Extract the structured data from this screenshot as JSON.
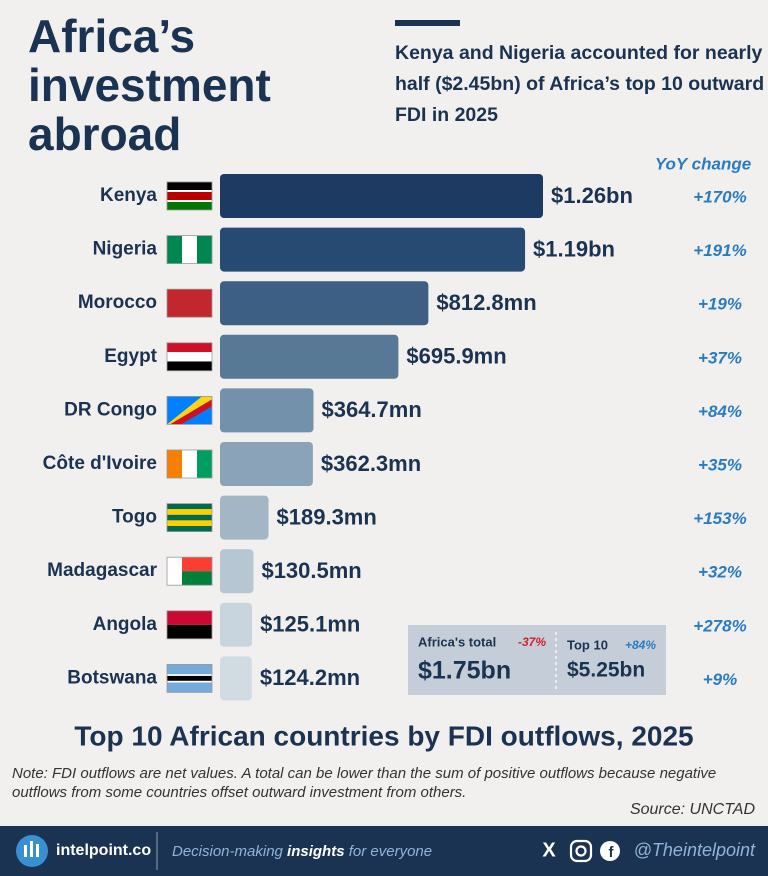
{
  "chart_data": {
    "type": "hbar",
    "title": "Africa’s investment abroad",
    "subtitle": "Kenya and Nigeria accounted for nearly half ($2.45bn) of Africa’s top 10 outward FDI in 2025",
    "chart_title": "Top 10 African countries by FDI outflows, 2025",
    "categories": [
      "Kenya",
      "Nigeria",
      "Morocco",
      "Egypt",
      "DR Congo",
      "Côte d'Ivoire",
      "Togo",
      "Madagascar",
      "Angola",
      "Botswana"
    ],
    "values": [
      1260,
      1190,
      812.8,
      695.9,
      364.7,
      362.3,
      189.3,
      130.5,
      125.1,
      124.2
    ],
    "value_labels": [
      "$1.26bn",
      "$1.19bn",
      "$812.8mn",
      "$695.9mn",
      "$364.7mn",
      "$362.3mn",
      "$189.3mn",
      "$130.5mn",
      "$125.1mn",
      "$124.2mn"
    ],
    "colors": [
      "#1d3b62",
      "#274a72",
      "#3d5f84",
      "#587996",
      "#7391ab",
      "#8ba3b8",
      "#a3b6c6",
      "#b6c6d2",
      "#c8d5de",
      "#d0dce2"
    ],
    "xlim": [
      0,
      1260
    ],
    "yoy": {
      "title": "YoY change",
      "values": [
        170,
        191,
        19,
        37,
        84,
        35,
        153,
        32,
        278,
        9
      ],
      "value_labels": [
        "+170%",
        "+191%",
        "+19%",
        "+37%",
        "+84%",
        "+35%",
        "+153%",
        "+32%",
        "+278%",
        "+9%"
      ]
    },
    "summary": [
      {
        "label": "Africa's total",
        "change": -37,
        "change_label": "-37%",
        "value": 1750,
        "value_label": "$1.75bn"
      },
      {
        "label": "Top 10",
        "change": 84,
        "change_label": "+84%",
        "value": 5250,
        "value_label": "$5.25bn"
      }
    ],
    "note": "Note: FDI outflows are net values. A total can be lower than the sum of positive outflows because negative outflows from some countries offset outward investment from others.",
    "source": "Source: UNCTAD"
  },
  "footer": {
    "brand": "intelpoint.co",
    "tagline_start": "Decision-making",
    "tagline_bold": "insights",
    "tagline_end": "for everyone",
    "handle": "@Theintelpoint"
  }
}
